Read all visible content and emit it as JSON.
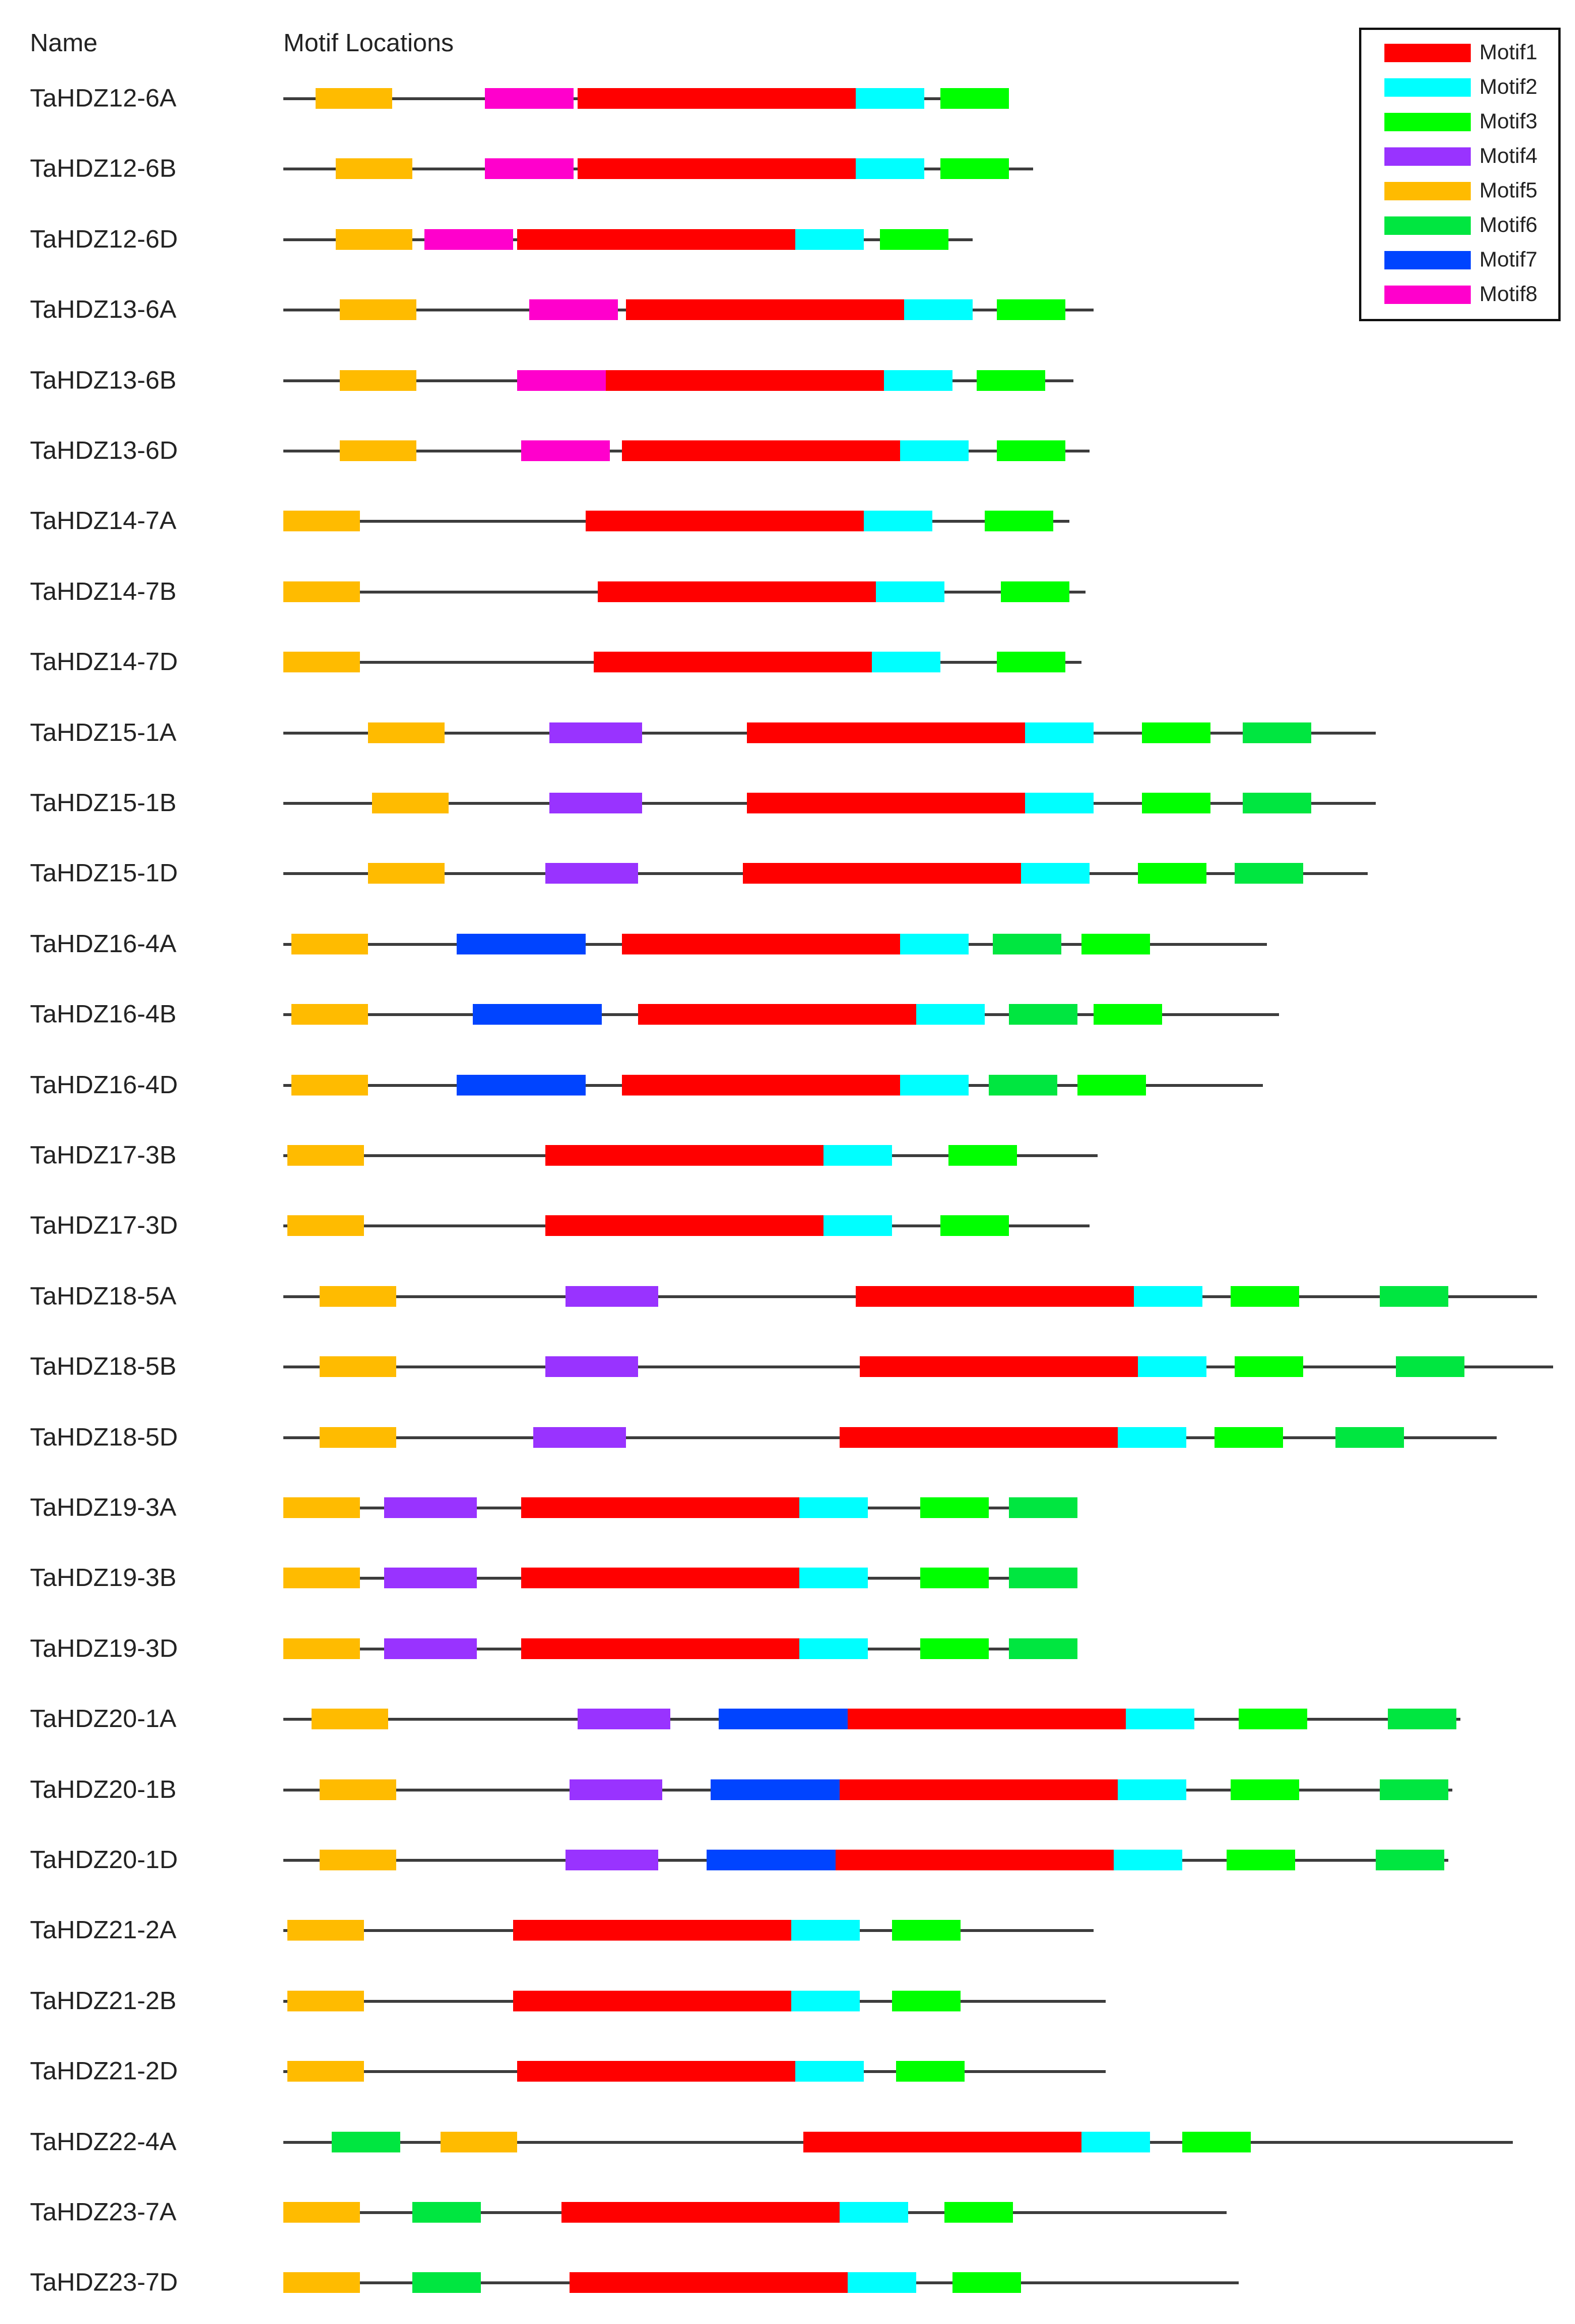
{
  "header": {
    "name_label": "Name",
    "locations_label": "Motif Locations"
  },
  "legend": [
    {
      "motif": "Motif1",
      "color": "#ff0000"
    },
    {
      "motif": "Motif2",
      "color": "#00ffff"
    },
    {
      "motif": "Motif3",
      "color": "#00ff00"
    },
    {
      "motif": "Motif4",
      "color": "#9933ff"
    },
    {
      "motif": "Motif5",
      "color": "#ffbb00"
    },
    {
      "motif": "Motif6",
      "color": "#00e640"
    },
    {
      "motif": "Motif7",
      "color": "#0044ff"
    },
    {
      "motif": "Motif8",
      "color": "#ff00cc"
    }
  ],
  "genes": [
    {
      "name": "TaHDZ12-6A",
      "length": 180,
      "motifs": [
        {
          "motif": "Motif5",
          "start": 8,
          "end": 27
        },
        {
          "motif": "Motif8",
          "start": 50,
          "end": 72
        },
        {
          "motif": "Motif1",
          "start": 73,
          "end": 142
        },
        {
          "motif": "Motif2",
          "start": 142,
          "end": 159
        },
        {
          "motif": "Motif3",
          "start": 163,
          "end": 180
        }
      ]
    },
    {
      "name": "TaHDZ12-6B",
      "length": 186,
      "motifs": [
        {
          "motif": "Motif5",
          "start": 13,
          "end": 32
        },
        {
          "motif": "Motif8",
          "start": 50,
          "end": 72
        },
        {
          "motif": "Motif1",
          "start": 73,
          "end": 142
        },
        {
          "motif": "Motif2",
          "start": 142,
          "end": 159
        },
        {
          "motif": "Motif3",
          "start": 163,
          "end": 180
        }
      ]
    },
    {
      "name": "TaHDZ12-6D",
      "length": 171,
      "motifs": [
        {
          "motif": "Motif5",
          "start": 13,
          "end": 32
        },
        {
          "motif": "Motif8",
          "start": 35,
          "end": 57
        },
        {
          "motif": "Motif1",
          "start": 58,
          "end": 127
        },
        {
          "motif": "Motif2",
          "start": 127,
          "end": 144
        },
        {
          "motif": "Motif3",
          "start": 148,
          "end": 165
        }
      ]
    },
    {
      "name": "TaHDZ13-6A",
      "length": 201,
      "motifs": [
        {
          "motif": "Motif5",
          "start": 14,
          "end": 33
        },
        {
          "motif": "Motif8",
          "start": 61,
          "end": 83
        },
        {
          "motif": "Motif1",
          "start": 85,
          "end": 154
        },
        {
          "motif": "Motif2",
          "start": 154,
          "end": 171
        },
        {
          "motif": "Motif3",
          "start": 177,
          "end": 194
        }
      ]
    },
    {
      "name": "TaHDZ13-6B",
      "length": 196,
      "motifs": [
        {
          "motif": "Motif5",
          "start": 14,
          "end": 33
        },
        {
          "motif": "Motif8",
          "start": 58,
          "end": 80
        },
        {
          "motif": "Motif1",
          "start": 80,
          "end": 149
        },
        {
          "motif": "Motif2",
          "start": 149,
          "end": 166
        },
        {
          "motif": "Motif3",
          "start": 172,
          "end": 189
        }
      ]
    },
    {
      "name": "TaHDZ13-6D",
      "length": 200,
      "motifs": [
        {
          "motif": "Motif5",
          "start": 14,
          "end": 33
        },
        {
          "motif": "Motif8",
          "start": 59,
          "end": 81
        },
        {
          "motif": "Motif1",
          "start": 84,
          "end": 153
        },
        {
          "motif": "Motif2",
          "start": 153,
          "end": 170
        },
        {
          "motif": "Motif3",
          "start": 177,
          "end": 194
        }
      ]
    },
    {
      "name": "TaHDZ14-7A",
      "length": 195,
      "motifs": [
        {
          "motif": "Motif5",
          "start": 0,
          "end": 19
        },
        {
          "motif": "Motif1",
          "start": 75,
          "end": 144
        },
        {
          "motif": "Motif2",
          "start": 144,
          "end": 161
        },
        {
          "motif": "Motif3",
          "start": 174,
          "end": 191
        }
      ]
    },
    {
      "name": "TaHDZ14-7B",
      "length": 199,
      "motifs": [
        {
          "motif": "Motif5",
          "start": 0,
          "end": 19
        },
        {
          "motif": "Motif1",
          "start": 78,
          "end": 147
        },
        {
          "motif": "Motif2",
          "start": 147,
          "end": 164
        },
        {
          "motif": "Motif3",
          "start": 178,
          "end": 195
        }
      ]
    },
    {
      "name": "TaHDZ14-7D",
      "length": 198,
      "motifs": [
        {
          "motif": "Motif5",
          "start": 0,
          "end": 19
        },
        {
          "motif": "Motif1",
          "start": 77,
          "end": 146
        },
        {
          "motif": "Motif2",
          "start": 146,
          "end": 163
        },
        {
          "motif": "Motif3",
          "start": 177,
          "end": 194
        }
      ]
    },
    {
      "name": "TaHDZ15-1A",
      "length": 271,
      "motifs": [
        {
          "motif": "Motif5",
          "start": 21,
          "end": 40
        },
        {
          "motif": "Motif4",
          "start": 66,
          "end": 89
        },
        {
          "motif": "Motif1",
          "start": 115,
          "end": 184
        },
        {
          "motif": "Motif2",
          "start": 184,
          "end": 201
        },
        {
          "motif": "Motif3",
          "start": 213,
          "end": 230
        },
        {
          "motif": "Motif6",
          "start": 238,
          "end": 255
        }
      ]
    },
    {
      "name": "TaHDZ15-1B",
      "length": 271,
      "motifs": [
        {
          "motif": "Motif5",
          "start": 22,
          "end": 41
        },
        {
          "motif": "Motif4",
          "start": 66,
          "end": 89
        },
        {
          "motif": "Motif1",
          "start": 115,
          "end": 184
        },
        {
          "motif": "Motif2",
          "start": 184,
          "end": 201
        },
        {
          "motif": "Motif3",
          "start": 213,
          "end": 230
        },
        {
          "motif": "Motif6",
          "start": 238,
          "end": 255
        }
      ]
    },
    {
      "name": "TaHDZ15-1D",
      "length": 269,
      "motifs": [
        {
          "motif": "Motif5",
          "start": 21,
          "end": 40
        },
        {
          "motif": "Motif4",
          "start": 65,
          "end": 88
        },
        {
          "motif": "Motif1",
          "start": 114,
          "end": 183
        },
        {
          "motif": "Motif2",
          "start": 183,
          "end": 200
        },
        {
          "motif": "Motif3",
          "start": 212,
          "end": 229
        },
        {
          "motif": "Motif6",
          "start": 236,
          "end": 253
        }
      ]
    },
    {
      "name": "TaHDZ16-4A",
      "length": 244,
      "motifs": [
        {
          "motif": "Motif5",
          "start": 2,
          "end": 21
        },
        {
          "motif": "Motif7",
          "start": 43,
          "end": 75
        },
        {
          "motif": "Motif1",
          "start": 84,
          "end": 153
        },
        {
          "motif": "Motif2",
          "start": 153,
          "end": 170
        },
        {
          "motif": "Motif6",
          "start": 176,
          "end": 193
        },
        {
          "motif": "Motif3",
          "start": 198,
          "end": 215
        }
      ]
    },
    {
      "name": "TaHDZ16-4B",
      "length": 247,
      "motifs": [
        {
          "motif": "Motif5",
          "start": 2,
          "end": 21
        },
        {
          "motif": "Motif7",
          "start": 47,
          "end": 79
        },
        {
          "motif": "Motif1",
          "start": 88,
          "end": 157
        },
        {
          "motif": "Motif2",
          "start": 157,
          "end": 174
        },
        {
          "motif": "Motif6",
          "start": 180,
          "end": 197
        },
        {
          "motif": "Motif3",
          "start": 201,
          "end": 218
        }
      ]
    },
    {
      "name": "TaHDZ16-4D",
      "length": 243,
      "motifs": [
        {
          "motif": "Motif5",
          "start": 2,
          "end": 21
        },
        {
          "motif": "Motif7",
          "start": 43,
          "end": 75
        },
        {
          "motif": "Motif1",
          "start": 84,
          "end": 153
        },
        {
          "motif": "Motif2",
          "start": 153,
          "end": 170
        },
        {
          "motif": "Motif6",
          "start": 175,
          "end": 192
        },
        {
          "motif": "Motif3",
          "start": 197,
          "end": 214
        }
      ]
    },
    {
      "name": "TaHDZ17-3B",
      "length": 202,
      "motifs": [
        {
          "motif": "Motif5",
          "start": 1,
          "end": 20
        },
        {
          "motif": "Motif1",
          "start": 65,
          "end": 134
        },
        {
          "motif": "Motif2",
          "start": 134,
          "end": 151
        },
        {
          "motif": "Motif3",
          "start": 165,
          "end": 182
        }
      ]
    },
    {
      "name": "TaHDZ17-3D",
      "length": 200,
      "motifs": [
        {
          "motif": "Motif5",
          "start": 1,
          "end": 20
        },
        {
          "motif": "Motif1",
          "start": 65,
          "end": 134
        },
        {
          "motif": "Motif2",
          "start": 134,
          "end": 151
        },
        {
          "motif": "Motif3",
          "start": 163,
          "end": 180
        }
      ]
    },
    {
      "name": "TaHDZ18-5A",
      "length": 311,
      "motifs": [
        {
          "motif": "Motif5",
          "start": 9,
          "end": 28
        },
        {
          "motif": "Motif4",
          "start": 70,
          "end": 93
        },
        {
          "motif": "Motif1",
          "start": 142,
          "end": 211
        },
        {
          "motif": "Motif2",
          "start": 211,
          "end": 228
        },
        {
          "motif": "Motif3",
          "start": 235,
          "end": 252
        },
        {
          "motif": "Motif6",
          "start": 272,
          "end": 289
        }
      ]
    },
    {
      "name": "TaHDZ18-5B",
      "length": 315,
      "motifs": [
        {
          "motif": "Motif5",
          "start": 9,
          "end": 28
        },
        {
          "motif": "Motif4",
          "start": 65,
          "end": 88
        },
        {
          "motif": "Motif1",
          "start": 143,
          "end": 212
        },
        {
          "motif": "Motif2",
          "start": 212,
          "end": 229
        },
        {
          "motif": "Motif3",
          "start": 236,
          "end": 253
        },
        {
          "motif": "Motif6",
          "start": 276,
          "end": 293
        }
      ]
    },
    {
      "name": "TaHDZ18-5D",
      "length": 301,
      "motifs": [
        {
          "motif": "Motif5",
          "start": 9,
          "end": 28
        },
        {
          "motif": "Motif4",
          "start": 62,
          "end": 85
        },
        {
          "motif": "Motif1",
          "start": 138,
          "end": 207
        },
        {
          "motif": "Motif2",
          "start": 207,
          "end": 224
        },
        {
          "motif": "Motif3",
          "start": 231,
          "end": 248
        },
        {
          "motif": "Motif6",
          "start": 261,
          "end": 278
        }
      ]
    },
    {
      "name": "TaHDZ19-3A",
      "length": 197,
      "motifs": [
        {
          "motif": "Motif5",
          "start": 0,
          "end": 19
        },
        {
          "motif": "Motif4",
          "start": 25,
          "end": 48
        },
        {
          "motif": "Motif1",
          "start": 59,
          "end": 128
        },
        {
          "motif": "Motif2",
          "start": 128,
          "end": 145
        },
        {
          "motif": "Motif3",
          "start": 158,
          "end": 175
        },
        {
          "motif": "Motif6",
          "start": 180,
          "end": 197
        }
      ]
    },
    {
      "name": "TaHDZ19-3B",
      "length": 197,
      "motifs": [
        {
          "motif": "Motif5",
          "start": 0,
          "end": 19
        },
        {
          "motif": "Motif4",
          "start": 25,
          "end": 48
        },
        {
          "motif": "Motif1",
          "start": 59,
          "end": 128
        },
        {
          "motif": "Motif2",
          "start": 128,
          "end": 145
        },
        {
          "motif": "Motif3",
          "start": 158,
          "end": 175
        },
        {
          "motif": "Motif6",
          "start": 180,
          "end": 197
        }
      ]
    },
    {
      "name": "TaHDZ19-3D",
      "length": 197,
      "motifs": [
        {
          "motif": "Motif5",
          "start": 0,
          "end": 19
        },
        {
          "motif": "Motif4",
          "start": 25,
          "end": 48
        },
        {
          "motif": "Motif1",
          "start": 59,
          "end": 128
        },
        {
          "motif": "Motif2",
          "start": 128,
          "end": 145
        },
        {
          "motif": "Motif3",
          "start": 158,
          "end": 175
        },
        {
          "motif": "Motif6",
          "start": 180,
          "end": 197
        }
      ]
    },
    {
      "name": "TaHDZ20-1A",
      "length": 292,
      "motifs": [
        {
          "motif": "Motif5",
          "start": 7,
          "end": 26
        },
        {
          "motif": "Motif4",
          "start": 73,
          "end": 96
        },
        {
          "motif": "Motif7",
          "start": 108,
          "end": 140
        },
        {
          "motif": "Motif1",
          "start": 140,
          "end": 209
        },
        {
          "motif": "Motif2",
          "start": 209,
          "end": 226
        },
        {
          "motif": "Motif3",
          "start": 237,
          "end": 254
        },
        {
          "motif": "Motif6",
          "start": 274,
          "end": 291
        }
      ]
    },
    {
      "name": "TaHDZ20-1B",
      "length": 290,
      "motifs": [
        {
          "motif": "Motif5",
          "start": 9,
          "end": 28
        },
        {
          "motif": "Motif4",
          "start": 71,
          "end": 94
        },
        {
          "motif": "Motif7",
          "start": 106,
          "end": 138
        },
        {
          "motif": "Motif1",
          "start": 138,
          "end": 207
        },
        {
          "motif": "Motif2",
          "start": 207,
          "end": 224
        },
        {
          "motif": "Motif3",
          "start": 235,
          "end": 252
        },
        {
          "motif": "Motif6",
          "start": 272,
          "end": 289
        }
      ]
    },
    {
      "name": "TaHDZ20-1D",
      "length": 289,
      "motifs": [
        {
          "motif": "Motif5",
          "start": 9,
          "end": 28
        },
        {
          "motif": "Motif4",
          "start": 70,
          "end": 93
        },
        {
          "motif": "Motif7",
          "start": 105,
          "end": 137
        },
        {
          "motif": "Motif1",
          "start": 137,
          "end": 206
        },
        {
          "motif": "Motif2",
          "start": 206,
          "end": 223
        },
        {
          "motif": "Motif3",
          "start": 234,
          "end": 251
        },
        {
          "motif": "Motif6",
          "start": 271,
          "end": 288
        }
      ]
    },
    {
      "name": "TaHDZ21-2A",
      "length": 201,
      "motifs": [
        {
          "motif": "Motif5",
          "start": 1,
          "end": 20
        },
        {
          "motif": "Motif1",
          "start": 57,
          "end": 126
        },
        {
          "motif": "Motif2",
          "start": 126,
          "end": 143
        },
        {
          "motif": "Motif3",
          "start": 151,
          "end": 168
        }
      ]
    },
    {
      "name": "TaHDZ21-2B",
      "length": 204,
      "motifs": [
        {
          "motif": "Motif5",
          "start": 1,
          "end": 20
        },
        {
          "motif": "Motif1",
          "start": 57,
          "end": 126
        },
        {
          "motif": "Motif2",
          "start": 126,
          "end": 143
        },
        {
          "motif": "Motif3",
          "start": 151,
          "end": 168
        }
      ]
    },
    {
      "name": "TaHDZ21-2D",
      "length": 204,
      "motifs": [
        {
          "motif": "Motif5",
          "start": 1,
          "end": 20
        },
        {
          "motif": "Motif1",
          "start": 58,
          "end": 127
        },
        {
          "motif": "Motif2",
          "start": 127,
          "end": 144
        },
        {
          "motif": "Motif3",
          "start": 152,
          "end": 169
        }
      ]
    },
    {
      "name": "TaHDZ22-4A",
      "length": 305,
      "motifs": [
        {
          "motif": "Motif6",
          "start": 12,
          "end": 29
        },
        {
          "motif": "Motif5",
          "start": 39,
          "end": 58
        },
        {
          "motif": "Motif1",
          "start": 129,
          "end": 198
        },
        {
          "motif": "Motif2",
          "start": 198,
          "end": 215
        },
        {
          "motif": "Motif3",
          "start": 223,
          "end": 240
        }
      ]
    },
    {
      "name": "TaHDZ23-7A",
      "length": 234,
      "motifs": [
        {
          "motif": "Motif5",
          "start": 0,
          "end": 19
        },
        {
          "motif": "Motif6",
          "start": 32,
          "end": 49
        },
        {
          "motif": "Motif1",
          "start": 69,
          "end": 138
        },
        {
          "motif": "Motif2",
          "start": 138,
          "end": 155
        },
        {
          "motif": "Motif3",
          "start": 164,
          "end": 181
        }
      ]
    },
    {
      "name": "TaHDZ23-7D",
      "length": 237,
      "motifs": [
        {
          "motif": "Motif5",
          "start": 0,
          "end": 19
        },
        {
          "motif": "Motif6",
          "start": 32,
          "end": 49
        },
        {
          "motif": "Motif1",
          "start": 71,
          "end": 140
        },
        {
          "motif": "Motif2",
          "start": 140,
          "end": 157
        },
        {
          "motif": "Motif3",
          "start": 166,
          "end": 183
        }
      ]
    }
  ]
}
